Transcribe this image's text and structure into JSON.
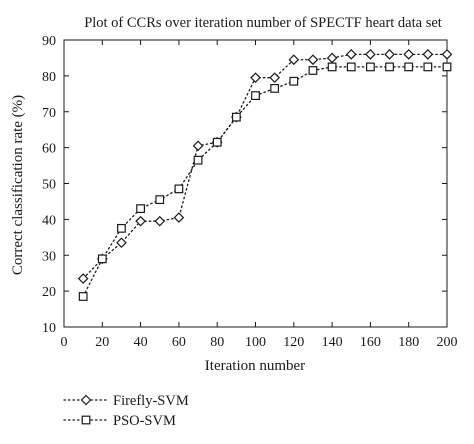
{
  "chart_data": {
    "type": "line",
    "title": "Plot of CCRs over iteration number of SPECTF heart data set",
    "xlabel": "Iteration number",
    "ylabel": "Correct classification rate (%)",
    "xlim": [
      0,
      200
    ],
    "ylim": [
      10,
      90
    ],
    "x_ticks": [
      0,
      20,
      40,
      60,
      80,
      100,
      120,
      140,
      160,
      180,
      200
    ],
    "y_ticks": [
      10,
      20,
      30,
      40,
      50,
      60,
      70,
      80,
      90
    ],
    "grid": false,
    "legend_position": "bottom-left",
    "x": [
      10,
      20,
      30,
      40,
      50,
      60,
      70,
      80,
      90,
      100,
      110,
      120,
      130,
      140,
      150,
      160,
      170,
      180,
      190,
      200
    ],
    "series": [
      {
        "name": "Firefly-SVM",
        "marker": "diamond",
        "line_style": "dotted",
        "values": [
          23.5,
          29,
          33.5,
          39.5,
          39.5,
          40.5,
          60.5,
          61.5,
          68.5,
          79.5,
          79.5,
          84.5,
          84.5,
          85,
          86,
          86,
          86,
          86,
          86,
          86
        ]
      },
      {
        "name": "PSO-SVM",
        "marker": "square",
        "line_style": "dotted",
        "values": [
          18.5,
          29,
          37.5,
          43,
          45.5,
          48.5,
          56.5,
          61.5,
          68.5,
          74.5,
          76.5,
          78.5,
          81.5,
          82.5,
          82.5,
          82.5,
          82.5,
          82.5,
          82.5,
          82.5
        ]
      }
    ],
    "colors": {
      "line": "#1a1a1a",
      "marker_fill": "#ffffff"
    }
  }
}
